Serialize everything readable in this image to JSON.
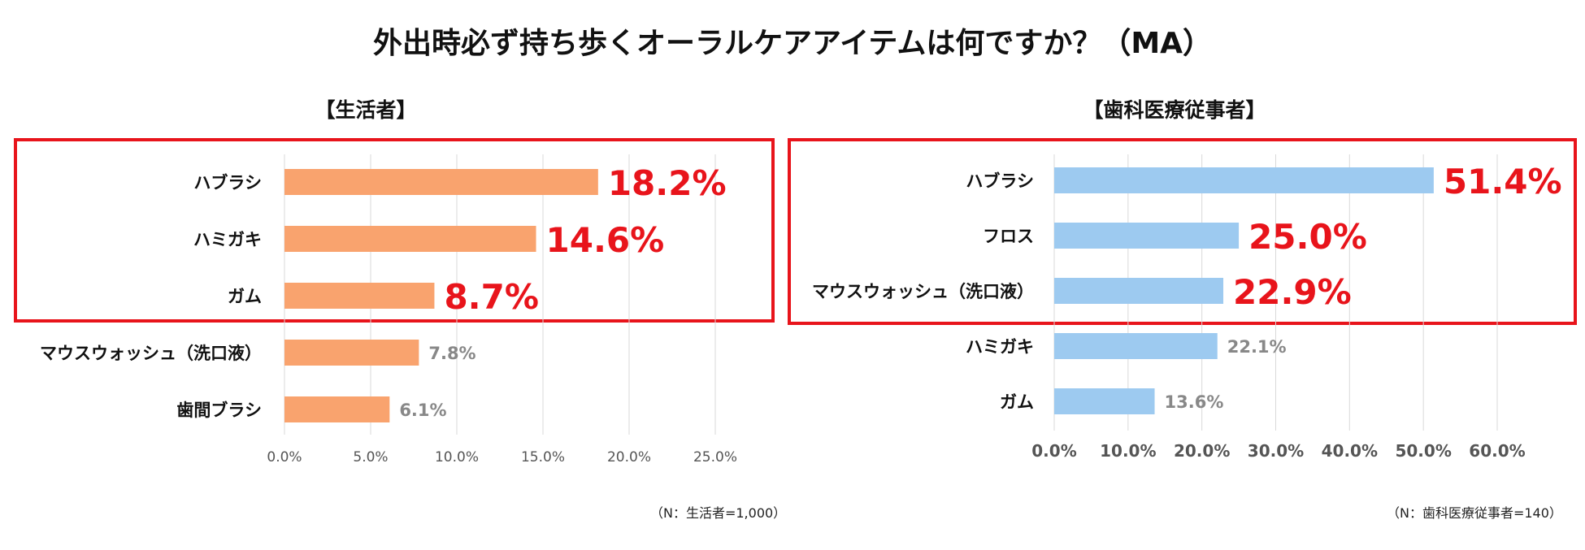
{
  "title": "外出時必ず持ち歩くオーラルケアアイテムは何ですか？（MA）",
  "chart_data": [
    {
      "type": "bar",
      "orientation": "horizontal",
      "title": "【生活者】",
      "categories": [
        "ハブラシ",
        "ハミガキ",
        "ガム",
        "マウスウォッシュ（洗口液）",
        "歯間ブラシ"
      ],
      "values": [
        18.2,
        14.6,
        8.7,
        7.8,
        6.1
      ],
      "value_labels": [
        "18.2%",
        "14.6%",
        "8.7%",
        "7.8%",
        "6.1%"
      ],
      "highlighted_count": 3,
      "xlim": [
        0,
        25
      ],
      "ticks": [
        0,
        5,
        10,
        15,
        20,
        25
      ],
      "tick_labels": [
        "0.0%",
        "5.0%",
        "10.0%",
        "15.0%",
        "20.0%",
        "25.0%"
      ],
      "grid": true,
      "color": "#f9a36e",
      "note": "（N：生活者=1,000）"
    },
    {
      "type": "bar",
      "orientation": "horizontal",
      "title": "【歯科医療従事者】",
      "categories": [
        "ハブラシ",
        "フロス",
        "マウスウォッシュ（洗口液）",
        "ハミガキ",
        "ガム"
      ],
      "values": [
        51.4,
        25.0,
        22.9,
        22.1,
        13.6
      ],
      "value_labels": [
        "51.4%",
        "25.0%",
        "22.9%",
        "22.1%",
        "13.6%"
      ],
      "highlighted_count": 3,
      "xlim": [
        0,
        60
      ],
      "ticks": [
        0,
        10,
        20,
        30,
        40,
        50,
        60
      ],
      "tick_labels": [
        "0.0%",
        "10.0%",
        "20.0%",
        "30.0%",
        "40.0%",
        "50.0%",
        "60.0%"
      ],
      "grid": true,
      "color": "#9dcaf0",
      "note": "（N：歯科医療従事者=140）"
    }
  ]
}
